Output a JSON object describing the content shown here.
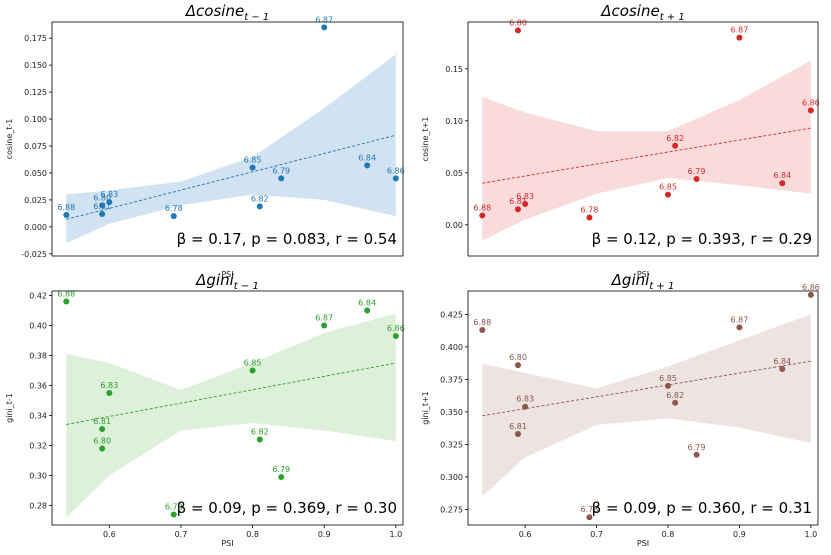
{
  "chart_data": [
    {
      "type": "scatter",
      "title_sym": "Δcosine",
      "title_sub": "t − 1",
      "xlabel": "PSI",
      "ylabel": "cosine_t-1",
      "xlim": [
        0.52,
        1.01
      ],
      "ylim": [
        -0.027,
        0.19
      ],
      "xticks": [],
      "yticks": [
        "-0.025",
        "0.000",
        "0.025",
        "0.050",
        "0.075",
        "0.100",
        "0.125",
        "0.150",
        "0.175"
      ],
      "color": "#1f77b4",
      "band_color": "#c6dbef",
      "points": [
        {
          "x": 0.54,
          "y": 0.011,
          "label": "6.88"
        },
        {
          "x": 0.59,
          "y": 0.012,
          "label": "6.81"
        },
        {
          "x": 0.59,
          "y": 0.02,
          "label": "6.80"
        },
        {
          "x": 0.6,
          "y": 0.023,
          "label": "6.83"
        },
        {
          "x": 0.69,
          "y": 0.01,
          "label": "6.78"
        },
        {
          "x": 0.8,
          "y": 0.055,
          "label": "6.85"
        },
        {
          "x": 0.81,
          "y": 0.019,
          "label": "6.82"
        },
        {
          "x": 0.84,
          "y": 0.045,
          "label": "6.79"
        },
        {
          "x": 0.9,
          "y": 0.185,
          "label": "6.87"
        },
        {
          "x": 0.96,
          "y": 0.057,
          "label": "6.84"
        },
        {
          "x": 1.0,
          "y": 0.045,
          "label": "6.86"
        }
      ],
      "fit": {
        "x": [
          0.54,
          1.0
        ],
        "y": [
          0.007,
          0.085
        ]
      },
      "band_x": [
        0.54,
        0.6,
        0.7,
        0.8,
        0.9,
        1.0
      ],
      "band_lo": [
        -0.015,
        0.003,
        0.02,
        0.03,
        0.025,
        0.01
      ],
      "band_hi": [
        0.03,
        0.034,
        0.042,
        0.065,
        0.11,
        0.16
      ],
      "annotation": "β = 0.17, p = 0.083, r = 0.54"
    },
    {
      "type": "scatter",
      "title_sym": "Δcosine",
      "title_sub": "t + 1",
      "xlabel": "PSI",
      "ylabel": "cosine_t+1",
      "xlim": [
        0.52,
        1.01
      ],
      "ylim": [
        -0.03,
        0.195
      ],
      "xticks": [],
      "yticks": [
        "0.00",
        "0.05",
        "0.10",
        "0.15"
      ],
      "color": "#d62728",
      "band_color": "#f9d2d2",
      "points": [
        {
          "x": 0.54,
          "y": 0.009,
          "label": "6.88"
        },
        {
          "x": 0.59,
          "y": 0.015,
          "label": "6.81"
        },
        {
          "x": 0.59,
          "y": 0.187,
          "label": "6.80"
        },
        {
          "x": 0.6,
          "y": 0.02,
          "label": "6.83"
        },
        {
          "x": 0.69,
          "y": 0.007,
          "label": "6.78"
        },
        {
          "x": 0.8,
          "y": 0.029,
          "label": "6.85"
        },
        {
          "x": 0.81,
          "y": 0.076,
          "label": "6.82"
        },
        {
          "x": 0.84,
          "y": 0.044,
          "label": "6.79"
        },
        {
          "x": 0.9,
          "y": 0.18,
          "label": "6.87"
        },
        {
          "x": 0.96,
          "y": 0.04,
          "label": "6.84"
        },
        {
          "x": 1.0,
          "y": 0.11,
          "label": "6.86"
        }
      ],
      "fit": {
        "x": [
          0.54,
          1.0
        ],
        "y": [
          0.04,
          0.093
        ]
      },
      "band_x": [
        0.54,
        0.6,
        0.7,
        0.8,
        0.9,
        1.0
      ],
      "band_lo": [
        -0.015,
        0.005,
        0.03,
        0.045,
        0.038,
        0.03
      ],
      "band_hi": [
        0.123,
        0.108,
        0.09,
        0.09,
        0.12,
        0.158
      ],
      "annotation": "β = 0.12, p = 0.393, r = 0.29"
    },
    {
      "type": "scatter",
      "title_sym": "Δgini",
      "title_sub": "t − 1",
      "xlabel": "PSI",
      "ylabel": "gini_t-1",
      "xlim": [
        0.52,
        1.01
      ],
      "ylim": [
        0.267,
        0.423
      ],
      "xticks": [
        "0.6",
        "0.7",
        "0.8",
        "0.9",
        "1.0"
      ],
      "yticks": [
        "0.28",
        "0.30",
        "0.32",
        "0.34",
        "0.36",
        "0.38",
        "0.40",
        "0.42"
      ],
      "color": "#2ca02c",
      "band_color": "#d4ecd0",
      "points": [
        {
          "x": 0.54,
          "y": 0.416,
          "label": "6.88"
        },
        {
          "x": 0.59,
          "y": 0.318,
          "label": "6.80"
        },
        {
          "x": 0.59,
          "y": 0.331,
          "label": "6.81"
        },
        {
          "x": 0.6,
          "y": 0.355,
          "label": "6.83"
        },
        {
          "x": 0.69,
          "y": 0.274,
          "label": "6.78"
        },
        {
          "x": 0.8,
          "y": 0.37,
          "label": "6.85"
        },
        {
          "x": 0.81,
          "y": 0.324,
          "label": "6.82"
        },
        {
          "x": 0.84,
          "y": 0.299,
          "label": "6.79"
        },
        {
          "x": 0.9,
          "y": 0.4,
          "label": "6.87"
        },
        {
          "x": 0.96,
          "y": 0.41,
          "label": "6.84"
        },
        {
          "x": 1.0,
          "y": 0.393,
          "label": "6.86"
        }
      ],
      "fit": {
        "x": [
          0.54,
          1.0
        ],
        "y": [
          0.334,
          0.375
        ]
      },
      "band_x": [
        0.54,
        0.6,
        0.7,
        0.8,
        0.9,
        1.0
      ],
      "band_lo": [
        0.272,
        0.3,
        0.33,
        0.335,
        0.33,
        0.323
      ],
      "band_hi": [
        0.381,
        0.375,
        0.357,
        0.375,
        0.395,
        0.408
      ],
      "annotation": "β = 0.09, p = 0.369, r = 0.30"
    },
    {
      "type": "scatter",
      "title_sym": "Δgini",
      "title_sub": "t + 1",
      "xlabel": "PSI",
      "ylabel": "gini_t+1",
      "xlim": [
        0.52,
        1.01
      ],
      "ylim": [
        0.263,
        0.443
      ],
      "xticks": [
        "0.6",
        "0.7",
        "0.8",
        "0.9",
        "1.0"
      ],
      "yticks": [
        "0.275",
        "0.300",
        "0.325",
        "0.350",
        "0.375",
        "0.400",
        "0.425"
      ],
      "color": "#8c564b",
      "band_color": "#e8dcd9",
      "points": [
        {
          "x": 0.54,
          "y": 0.413,
          "label": "6.88"
        },
        {
          "x": 0.59,
          "y": 0.333,
          "label": "6.81"
        },
        {
          "x": 0.59,
          "y": 0.386,
          "label": "6.80"
        },
        {
          "x": 0.6,
          "y": 0.354,
          "label": "6.83"
        },
        {
          "x": 0.69,
          "y": 0.269,
          "label": "6.78"
        },
        {
          "x": 0.8,
          "y": 0.37,
          "label": "6.85"
        },
        {
          "x": 0.81,
          "y": 0.357,
          "label": "6.82"
        },
        {
          "x": 0.84,
          "y": 0.317,
          "label": "6.79"
        },
        {
          "x": 0.9,
          "y": 0.415,
          "label": "6.87"
        },
        {
          "x": 0.96,
          "y": 0.383,
          "label": "6.84"
        },
        {
          "x": 1.0,
          "y": 0.44,
          "label": "6.86"
        }
      ],
      "fit": {
        "x": [
          0.54,
          1.0
        ],
        "y": [
          0.347,
          0.389
        ]
      },
      "band_x": [
        0.54,
        0.6,
        0.7,
        0.8,
        0.9,
        1.0
      ],
      "band_lo": [
        0.285,
        0.315,
        0.34,
        0.345,
        0.338,
        0.326
      ],
      "band_hi": [
        0.387,
        0.38,
        0.368,
        0.385,
        0.405,
        0.425
      ],
      "annotation": "β = 0.09, p = 0.360, r = 0.31"
    }
  ]
}
